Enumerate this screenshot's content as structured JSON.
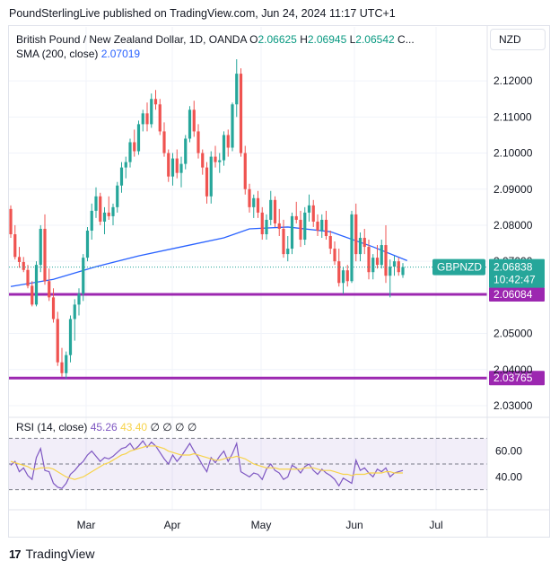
{
  "header": {
    "published": "PoundSterlingLive published on TradingView.com, Jun 24, 2024 11:17 UTC+1"
  },
  "legend": {
    "symbol": "British Pound / New Zealand Dollar, 1D, OANDA",
    "o_label": "O",
    "o_value": "2.06625",
    "h_label": "H",
    "h_value": "2.06945",
    "l_label": "L",
    "l_value": "2.06542",
    "c_label": "C...",
    "sma_label": "SMA (200, close)",
    "sma_value": "2.07019"
  },
  "currency_button": "NZD",
  "rsi_legend": {
    "label": "RSI (14, close)",
    "value1": "45.26",
    "value2": "43.40",
    "icons": [
      "∅",
      "∅",
      "∅",
      "∅"
    ]
  },
  "branding": {
    "name": "TradingView",
    "logo": "17"
  },
  "colors": {
    "up": "#26a69a",
    "down": "#ef5350",
    "sma": "#2962ff",
    "level": "#9c27b0",
    "rsi": "#7e57c2",
    "rsi_ma": "#f7d34a",
    "tag": "#26a69a"
  },
  "chart_data": {
    "type": "candlestick",
    "symbol": "GBPNZD",
    "y_ticks": [
      "2.12000",
      "2.11000",
      "2.10000",
      "2.09000",
      "2.08000",
      "2.07000",
      "2.05000",
      "2.04000",
      "2.03000"
    ],
    "x_ticks": [
      "Mar",
      "Apr",
      "May",
      "Jun",
      "Jul"
    ],
    "ylim": [
      2.0275,
      2.1275
    ],
    "price_tag": {
      "label": "GBPNZD",
      "value": "2.06838",
      "time": "10:42:47"
    },
    "levels": [
      {
        "value": 2.06084,
        "label": "2.06084"
      },
      {
        "value": 2.03765,
        "label": "2.03765"
      }
    ],
    "candles": [
      [
        2.0845,
        2.0855,
        2.0765,
        2.0775
      ],
      [
        2.0775,
        2.08,
        2.0705,
        2.0712
      ],
      [
        2.0712,
        2.074,
        2.0682,
        2.0698
      ],
      [
        2.0698,
        2.0712,
        2.067,
        2.0676
      ],
      [
        2.0676,
        2.069,
        2.0625,
        2.0632
      ],
      [
        2.0632,
        2.0645,
        2.0575,
        2.058
      ],
      [
        2.058,
        2.07,
        2.0575,
        2.069
      ],
      [
        2.069,
        2.08,
        2.067,
        2.079
      ],
      [
        2.079,
        2.083,
        2.0635,
        2.0645
      ],
      [
        2.0645,
        2.068,
        2.059,
        2.06
      ],
      [
        2.06,
        2.0625,
        2.053,
        2.054
      ],
      [
        2.054,
        2.056,
        2.041,
        2.042
      ],
      [
        2.042,
        2.046,
        2.038,
        2.039
      ],
      [
        2.039,
        2.045,
        2.0375,
        2.044
      ],
      [
        2.044,
        2.055,
        2.042,
        2.054
      ],
      [
        2.054,
        2.0595,
        2.048,
        2.058
      ],
      [
        2.058,
        2.0625,
        2.055,
        2.061
      ],
      [
        2.061,
        2.072,
        2.059,
        2.071
      ],
      [
        2.071,
        2.0795,
        2.07,
        2.0785
      ],
      [
        2.0785,
        2.086,
        2.076,
        2.084
      ],
      [
        2.084,
        2.0905,
        2.082,
        2.088
      ],
      [
        2.088,
        2.089,
        2.08,
        2.081
      ],
      [
        2.081,
        2.085,
        2.0775,
        2.0835
      ],
      [
        2.0835,
        2.088,
        2.0815,
        2.0825
      ],
      [
        2.0825,
        2.086,
        2.08,
        2.085
      ],
      [
        2.085,
        2.092,
        2.0835,
        2.091
      ],
      [
        2.091,
        2.0975,
        2.089,
        2.096
      ],
      [
        2.096,
        2.099,
        2.093,
        2.0975
      ],
      [
        2.0975,
        2.104,
        2.096,
        2.103
      ],
      [
        2.103,
        2.1065,
        2.099,
        2.1005
      ],
      [
        2.1005,
        2.109,
        2.0995,
        2.108
      ],
      [
        2.108,
        2.112,
        2.106,
        2.111
      ],
      [
        2.111,
        2.114,
        2.106,
        2.108
      ],
      [
        2.108,
        2.1165,
        2.107,
        2.115
      ],
      [
        2.115,
        2.1175,
        2.112,
        2.1135
      ],
      [
        2.1135,
        2.115,
        2.105,
        2.106
      ],
      [
        2.106,
        2.1085,
        2.099,
        2.1
      ],
      [
        2.1,
        2.101,
        2.092,
        2.0935
      ],
      [
        2.0935,
        2.1,
        2.091,
        2.0985
      ],
      [
        2.0985,
        2.101,
        2.093,
        2.0945
      ],
      [
        2.0945,
        2.099,
        2.0905,
        2.097
      ],
      [
        2.097,
        2.105,
        2.0955,
        2.104
      ],
      [
        2.104,
        2.113,
        2.103,
        2.112
      ],
      [
        2.112,
        2.1145,
        2.1045,
        2.106
      ],
      [
        2.106,
        2.108,
        2.0985,
        2.1
      ],
      [
        2.1,
        2.101,
        2.094,
        2.096
      ],
      [
        2.096,
        2.0975,
        2.086,
        2.088
      ],
      [
        2.088,
        2.1005,
        2.086,
        2.099
      ],
      [
        2.099,
        2.102,
        2.096,
        2.0975
      ],
      [
        2.0975,
        2.1,
        2.0945,
        2.098
      ],
      [
        2.098,
        2.106,
        2.0965,
        2.105
      ],
      [
        2.105,
        2.1065,
        2.099,
        2.1015
      ],
      [
        2.1015,
        2.114,
        2.1005,
        2.1135
      ],
      [
        2.1135,
        2.126,
        2.11,
        2.122
      ],
      [
        2.122,
        2.1235,
        2.099,
        2.1
      ],
      [
        2.1,
        2.102,
        2.0885,
        2.09
      ],
      [
        2.09,
        2.0915,
        2.0835,
        2.085
      ],
      [
        2.085,
        2.0885,
        2.082,
        2.0875
      ],
      [
        2.0875,
        2.0895,
        2.082,
        2.0835
      ],
      [
        2.0835,
        2.085,
        2.076,
        2.0775
      ],
      [
        2.0775,
        2.083,
        2.076,
        2.0815
      ],
      [
        2.0815,
        2.0895,
        2.08,
        2.087
      ],
      [
        2.087,
        2.088,
        2.0795,
        2.0805
      ],
      [
        2.0805,
        2.0845,
        2.077,
        2.079
      ],
      [
        2.079,
        2.0815,
        2.071,
        2.072
      ],
      [
        2.072,
        2.077,
        2.07,
        2.0735
      ],
      [
        2.0735,
        2.0835,
        2.072,
        2.0825
      ],
      [
        2.0825,
        2.0865,
        2.0805,
        2.0815
      ],
      [
        2.0815,
        2.084,
        2.074,
        2.076
      ],
      [
        2.076,
        2.085,
        2.0745,
        2.0835
      ],
      [
        2.0835,
        2.0885,
        2.081,
        2.0855
      ],
      [
        2.0855,
        2.087,
        2.0795,
        2.081
      ],
      [
        2.081,
        2.083,
        2.077,
        2.0785
      ],
      [
        2.0785,
        2.083,
        2.0765,
        2.0815
      ],
      [
        2.0815,
        2.084,
        2.076,
        2.077
      ],
      [
        2.077,
        2.0785,
        2.072,
        2.0735
      ],
      [
        2.0735,
        2.0755,
        2.069,
        2.07
      ],
      [
        2.07,
        2.0735,
        2.063,
        2.064
      ],
      [
        2.064,
        2.0685,
        2.061,
        2.0675
      ],
      [
        2.0675,
        2.069,
        2.063,
        2.0645
      ],
      [
        2.0645,
        2.084,
        2.064,
        2.083
      ],
      [
        2.083,
        2.086,
        2.07,
        2.072
      ],
      [
        2.072,
        2.078,
        2.07,
        2.0765
      ],
      [
        2.0765,
        2.079,
        2.072,
        2.074
      ],
      [
        2.074,
        2.076,
        2.065,
        2.067
      ],
      [
        2.067,
        2.072,
        2.065,
        2.071
      ],
      [
        2.071,
        2.0745,
        2.068,
        2.069
      ],
      [
        2.069,
        2.076,
        2.068,
        2.0745
      ],
      [
        2.0745,
        2.08,
        2.064,
        2.066
      ],
      [
        2.066,
        2.0705,
        2.06,
        2.0685
      ],
      [
        2.0685,
        2.0715,
        2.066,
        2.07
      ],
      [
        2.07,
        2.071,
        2.066,
        2.067
      ],
      [
        2.0662,
        2.0695,
        2.0654,
        2.0684
      ]
    ],
    "sma": [
      [
        0,
        2.063
      ],
      [
        10,
        2.065
      ],
      [
        20,
        2.0685
      ],
      [
        30,
        2.0715
      ],
      [
        40,
        2.074
      ],
      [
        50,
        2.0765
      ],
      [
        56,
        2.079
      ],
      [
        65,
        2.0795
      ],
      [
        75,
        2.0782
      ],
      [
        85,
        2.074
      ],
      [
        93,
        2.0702
      ]
    ],
    "rsi": {
      "ylim": [
        20,
        80
      ],
      "ticks": [
        "60.00",
        "40.00"
      ],
      "bands": [
        70,
        50,
        30
      ],
      "values": [
        49,
        52,
        44,
        47,
        41,
        38,
        55,
        62,
        45,
        44,
        35,
        32,
        31,
        35,
        42,
        45,
        49,
        52,
        57,
        60,
        56,
        52,
        55,
        54,
        56,
        59,
        62,
        63,
        66,
        61,
        64,
        68,
        63,
        67,
        64,
        59,
        54,
        50,
        57,
        52,
        56,
        61,
        66,
        60,
        55,
        49,
        44,
        55,
        51,
        56,
        60,
        52,
        58,
        66,
        44,
        42,
        40,
        43,
        42,
        38,
        46,
        50,
        45,
        43,
        38,
        40,
        49,
        47,
        43,
        48,
        50,
        45,
        42,
        46,
        43,
        41,
        38,
        33,
        39,
        37,
        35,
        53,
        45,
        47,
        43,
        40,
        46,
        44,
        47,
        40,
        43,
        44,
        45
      ],
      "ma_values": [
        52,
        51,
        50,
        49,
        48,
        46,
        46,
        47,
        47,
        47,
        46,
        44,
        42,
        40,
        39,
        38,
        39,
        40,
        42,
        44,
        46,
        48,
        50,
        51,
        53,
        55,
        57,
        58,
        60,
        61,
        62,
        63,
        64,
        64,
        64,
        63,
        62,
        60,
        59,
        58,
        57,
        57,
        57,
        58,
        57,
        56,
        55,
        54,
        53,
        53,
        54,
        55,
        55,
        56,
        55,
        54,
        52,
        50,
        49,
        48,
        47,
        47,
        47,
        46,
        46,
        46,
        46,
        46,
        46,
        47,
        47,
        47,
        46,
        45,
        45,
        45,
        44,
        43,
        42,
        42,
        41,
        42,
        42,
        42,
        43,
        43,
        43,
        43,
        44,
        44,
        43,
        43,
        43
      ]
    }
  }
}
